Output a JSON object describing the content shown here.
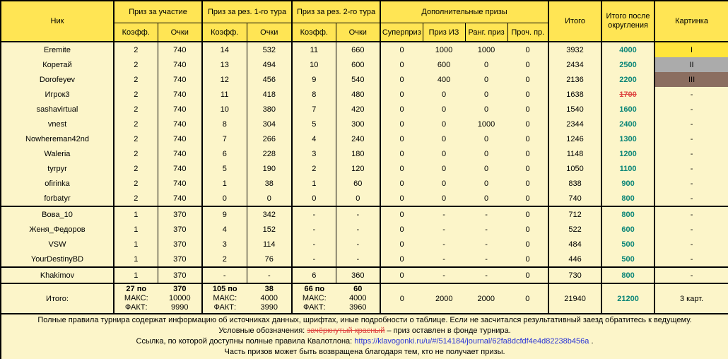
{
  "colors": {
    "header_bg": "#ffe554",
    "body_bg": "#fcf5c9",
    "gold": "#ffe53c",
    "silver": "#ababab",
    "bronze": "#8b6e60",
    "green": "#0a8577",
    "red": "#de4742",
    "link": "#2b35d6"
  },
  "header": {
    "nick": "Ник",
    "groups": [
      {
        "label": "Приз за участие"
      },
      {
        "label": "Приз за рез. 1-го тура"
      },
      {
        "label": "Приз за рез. 2-го тура"
      },
      {
        "label": "Дополнительные призы"
      }
    ],
    "sub_labels": [
      "Коэфф.",
      "Очки",
      "Коэфф.",
      "Очки",
      "Коэфф.",
      "Очки",
      "Суперприз",
      "Приз ИЗ",
      "Ранг. приз",
      "Проч. пр."
    ],
    "total": "Итого",
    "total_rounded": "Итого после округления",
    "picture": "Картинка"
  },
  "rows": [
    {
      "nick": "Eremite",
      "values": [
        "2",
        "740",
        "14",
        "532",
        "11",
        "660",
        "0",
        "1000",
        "1000",
        "0"
      ],
      "total": "3932",
      "rounded": "4000",
      "rounded_red": false,
      "picture": "I",
      "medal": "gold",
      "thick": false
    },
    {
      "nick": "Коретай",
      "values": [
        "2",
        "740",
        "13",
        "494",
        "10",
        "600",
        "0",
        "600",
        "0",
        "0"
      ],
      "total": "2434",
      "rounded": "2500",
      "rounded_red": false,
      "picture": "II",
      "medal": "silver",
      "thick": false
    },
    {
      "nick": "Dorofeyev",
      "values": [
        "2",
        "740",
        "12",
        "456",
        "9",
        "540",
        "0",
        "400",
        "0",
        "0"
      ],
      "total": "2136",
      "rounded": "2200",
      "rounded_red": false,
      "picture": "III",
      "medal": "bronze",
      "thick": false
    },
    {
      "nick": "Игрок3",
      "values": [
        "2",
        "740",
        "11",
        "418",
        "8",
        "480",
        "0",
        "0",
        "0",
        "0"
      ],
      "total": "1638",
      "rounded": "1700",
      "rounded_red": true,
      "picture": "-",
      "medal": null,
      "thick": false
    },
    {
      "nick": "sashavirtual",
      "values": [
        "2",
        "740",
        "10",
        "380",
        "7",
        "420",
        "0",
        "0",
        "0",
        "0"
      ],
      "total": "1540",
      "rounded": "1600",
      "rounded_red": false,
      "picture": "-",
      "medal": null,
      "thick": false
    },
    {
      "nick": "vnest",
      "values": [
        "2",
        "740",
        "8",
        "304",
        "5",
        "300",
        "0",
        "0",
        "1000",
        "0"
      ],
      "total": "2344",
      "rounded": "2400",
      "rounded_red": false,
      "picture": "-",
      "medal": null,
      "thick": false
    },
    {
      "nick": "Nowhereman42nd",
      "values": [
        "2",
        "740",
        "7",
        "266",
        "4",
        "240",
        "0",
        "0",
        "0",
        "0"
      ],
      "total": "1246",
      "rounded": "1300",
      "rounded_red": false,
      "picture": "-",
      "medal": null,
      "thick": false
    },
    {
      "nick": "Waleria",
      "values": [
        "2",
        "740",
        "6",
        "228",
        "3",
        "180",
        "0",
        "0",
        "0",
        "0"
      ],
      "total": "1148",
      "rounded": "1200",
      "rounded_red": false,
      "picture": "-",
      "medal": null,
      "thick": false
    },
    {
      "nick": "tyrpyr",
      "values": [
        "2",
        "740",
        "5",
        "190",
        "2",
        "120",
        "0",
        "0",
        "0",
        "0"
      ],
      "total": "1050",
      "rounded": "1100",
      "rounded_red": false,
      "picture": "-",
      "medal": null,
      "thick": false
    },
    {
      "nick": "ofirinka",
      "values": [
        "2",
        "740",
        "1",
        "38",
        "1",
        "60",
        "0",
        "0",
        "0",
        "0"
      ],
      "total": "838",
      "rounded": "900",
      "rounded_red": false,
      "picture": "-",
      "medal": null,
      "thick": false
    },
    {
      "nick": "forbatyr",
      "values": [
        "2",
        "740",
        "0",
        "0",
        "0",
        "0",
        "0",
        "0",
        "0",
        "0"
      ],
      "total": "740",
      "rounded": "800",
      "rounded_red": false,
      "picture": "-",
      "medal": null,
      "thick": true
    },
    {
      "nick": "Вова_10",
      "values": [
        "1",
        "370",
        "9",
        "342",
        "-",
        "-",
        "0",
        "-",
        "-",
        "0"
      ],
      "total": "712",
      "rounded": "800",
      "rounded_red": false,
      "picture": "-",
      "medal": null,
      "thick": false
    },
    {
      "nick": "Женя_Федоров",
      "values": [
        "1",
        "370",
        "4",
        "152",
        "-",
        "-",
        "0",
        "-",
        "-",
        "0"
      ],
      "total": "522",
      "rounded": "600",
      "rounded_red": false,
      "picture": "-",
      "medal": null,
      "thick": false
    },
    {
      "nick": "VSW",
      "values": [
        "1",
        "370",
        "3",
        "114",
        "-",
        "-",
        "0",
        "-",
        "-",
        "0"
      ],
      "total": "484",
      "rounded": "500",
      "rounded_red": false,
      "picture": "-",
      "medal": null,
      "thick": false
    },
    {
      "nick": "YourDestinyBD",
      "values": [
        "1",
        "370",
        "2",
        "76",
        "-",
        "-",
        "0",
        "-",
        "-",
        "0"
      ],
      "total": "446",
      "rounded": "500",
      "rounded_red": false,
      "picture": "-",
      "medal": null,
      "thick": true
    },
    {
      "nick": "Khakimov",
      "values": [
        "1",
        "370",
        "-",
        "-",
        "6",
        "360",
        "0",
        "-",
        "-",
        "0"
      ],
      "total": "730",
      "rounded": "800",
      "rounded_red": false,
      "picture": "-",
      "medal": null,
      "thick": true
    }
  ],
  "totals": {
    "label": "Итого:",
    "participation": [
      [
        "27 по",
        "370"
      ],
      [
        "МАКС:",
        "10000"
      ],
      [
        "ФАКТ:",
        "9990"
      ]
    ],
    "round1": [
      [
        "105 по",
        "38"
      ],
      [
        "МАКС:",
        "4000"
      ],
      [
        "ФАКТ:",
        "3990"
      ]
    ],
    "round2": [
      [
        "66 по",
        "60"
      ],
      [
        "МАКС:",
        "4000"
      ],
      [
        "ФАКТ:",
        "3960"
      ]
    ],
    "extras": [
      "0",
      "2000",
      "2000",
      "0"
    ],
    "total": "21940",
    "rounded": "21200",
    "picture": "3 карт."
  },
  "footer": {
    "line1": "Полные правила турнира содержат информацию об источниках данных, шрифтах, иные подробности о таблице. Если не засчитался результативный заезд обратитесь к ведущему.",
    "line2_prefix": "Условные обозначения: ",
    "line2_struck": "зачёркнутый красный",
    "line2_suffix": " – приз оставлен в фонде турнира.",
    "line3_prefix": "Ссылка, по которой доступны полные правила Квалотлона: ",
    "line3_link": "https://klavogonki.ru/u/#/514184/journal/62fa8dcfdf4e4d82238b456a",
    "line3_suffix": " .",
    "line4": "Часть призов может быть возвращена благодаря тем, кто не получает призы."
  }
}
